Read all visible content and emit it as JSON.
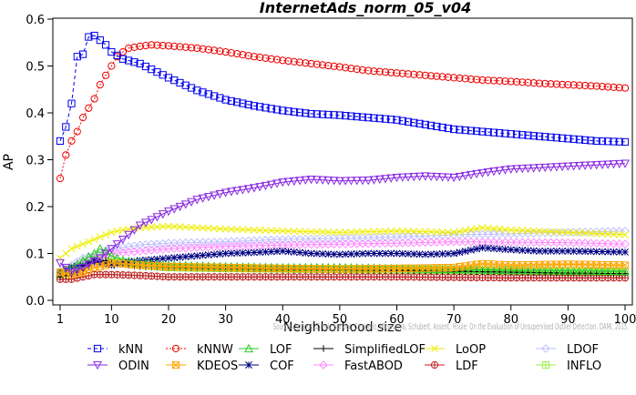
{
  "chart_data": {
    "type": "line",
    "title": "InternetAds_norm_05_v04",
    "xlabel": "Neighborhood size",
    "ylabel": "AP",
    "xlim": [
      1,
      100
    ],
    "ylim": [
      0,
      0.6
    ],
    "xticks": [
      1,
      10,
      20,
      30,
      40,
      50,
      60,
      70,
      80,
      90,
      100
    ],
    "yticks": [
      0.0,
      0.1,
      0.2,
      0.3,
      0.4,
      0.5,
      0.6
    ],
    "grid": false,
    "legend_position": "bottom",
    "watermark": "Source: Campos, Zimek, Sander, Campello, Micenkova, Schubert, Assent, Houle: On the Evaluation of Unsupervised Outlier Detection. DAMI, 2015.",
    "series": [
      {
        "name": "kNN",
        "color": "#0000ee",
        "marker": "square",
        "dash": "4,3",
        "points": [
          [
            1,
            0.34
          ],
          [
            2,
            0.37
          ],
          [
            3,
            0.42
          ],
          [
            4,
            0.52
          ],
          [
            5,
            0.525
          ],
          [
            6,
            0.562
          ],
          [
            7,
            0.565
          ],
          [
            8,
            0.555
          ],
          [
            9,
            0.545
          ],
          [
            10,
            0.53
          ],
          [
            12,
            0.515
          ],
          [
            15,
            0.505
          ],
          [
            20,
            0.475
          ],
          [
            25,
            0.448
          ],
          [
            30,
            0.428
          ],
          [
            35,
            0.415
          ],
          [
            40,
            0.405
          ],
          [
            45,
            0.398
          ],
          [
            50,
            0.395
          ],
          [
            55,
            0.39
          ],
          [
            60,
            0.385
          ],
          [
            65,
            0.375
          ],
          [
            70,
            0.365
          ],
          [
            75,
            0.36
          ],
          [
            80,
            0.355
          ],
          [
            85,
            0.35
          ],
          [
            90,
            0.345
          ],
          [
            95,
            0.34
          ],
          [
            100,
            0.338
          ]
        ]
      },
      {
        "name": "ODIN",
        "color": "#8a2be2",
        "marker": "triangle-down",
        "dash": "",
        "points": [
          [
            1,
            0.08
          ],
          [
            3,
            0.06
          ],
          [
            5,
            0.07
          ],
          [
            8,
            0.09
          ],
          [
            10,
            0.11
          ],
          [
            12,
            0.13
          ],
          [
            15,
            0.16
          ],
          [
            20,
            0.19
          ],
          [
            25,
            0.215
          ],
          [
            30,
            0.23
          ],
          [
            35,
            0.24
          ],
          [
            40,
            0.252
          ],
          [
            45,
            0.258
          ],
          [
            50,
            0.255
          ],
          [
            55,
            0.256
          ],
          [
            60,
            0.262
          ],
          [
            65,
            0.265
          ],
          [
            70,
            0.262
          ],
          [
            75,
            0.272
          ],
          [
            80,
            0.28
          ],
          [
            85,
            0.283
          ],
          [
            90,
            0.286
          ],
          [
            95,
            0.289
          ],
          [
            100,
            0.292
          ]
        ]
      },
      {
        "name": "kNNW",
        "color": "#ee0000",
        "marker": "circle",
        "dash": "2,2",
        "points": [
          [
            1,
            0.26
          ],
          [
            2,
            0.31
          ],
          [
            3,
            0.34
          ],
          [
            4,
            0.36
          ],
          [
            5,
            0.39
          ],
          [
            6,
            0.41
          ],
          [
            7,
            0.43
          ],
          [
            8,
            0.46
          ],
          [
            9,
            0.48
          ],
          [
            10,
            0.5
          ],
          [
            11,
            0.52
          ],
          [
            12,
            0.53
          ],
          [
            13,
            0.538
          ],
          [
            15,
            0.542
          ],
          [
            17,
            0.545
          ],
          [
            20,
            0.543
          ],
          [
            25,
            0.538
          ],
          [
            30,
            0.53
          ],
          [
            35,
            0.52
          ],
          [
            40,
            0.512
          ],
          [
            45,
            0.505
          ],
          [
            50,
            0.498
          ],
          [
            55,
            0.49
          ],
          [
            60,
            0.485
          ],
          [
            65,
            0.48
          ],
          [
            70,
            0.475
          ],
          [
            75,
            0.47
          ],
          [
            80,
            0.467
          ],
          [
            85,
            0.463
          ],
          [
            90,
            0.46
          ],
          [
            95,
            0.457
          ],
          [
            100,
            0.453
          ]
        ]
      },
      {
        "name": "KDEOS",
        "color": "#ffa500",
        "marker": "square-x",
        "dash": "",
        "points": [
          [
            1,
            0.06
          ],
          [
            3,
            0.055
          ],
          [
            5,
            0.06
          ],
          [
            7,
            0.07
          ],
          [
            9,
            0.075
          ],
          [
            10,
            0.08
          ],
          [
            15,
            0.075
          ],
          [
            20,
            0.072
          ],
          [
            30,
            0.07
          ],
          [
            40,
            0.068
          ],
          [
            50,
            0.067
          ],
          [
            60,
            0.068
          ],
          [
            70,
            0.07
          ],
          [
            75,
            0.078
          ],
          [
            80,
            0.075
          ],
          [
            90,
            0.077
          ],
          [
            100,
            0.075
          ]
        ]
      },
      {
        "name": "LOF",
        "color": "#22cc22",
        "marker": "triangle",
        "dash": "",
        "points": [
          [
            1,
            0.06
          ],
          [
            3,
            0.07
          ],
          [
            5,
            0.085
          ],
          [
            7,
            0.1
          ],
          [
            8,
            0.11
          ],
          [
            9,
            0.105
          ],
          [
            10,
            0.095
          ],
          [
            12,
            0.085
          ],
          [
            15,
            0.08
          ],
          [
            20,
            0.075
          ],
          [
            30,
            0.072
          ],
          [
            40,
            0.07
          ],
          [
            50,
            0.07
          ],
          [
            60,
            0.068
          ],
          [
            70,
            0.066
          ],
          [
            80,
            0.064
          ],
          [
            90,
            0.063
          ],
          [
            100,
            0.062
          ]
        ]
      },
      {
        "name": "COF",
        "color": "#000080",
        "marker": "asterisk",
        "dash": "",
        "points": [
          [
            1,
            0.06
          ],
          [
            3,
            0.07
          ],
          [
            5,
            0.075
          ],
          [
            7,
            0.085
          ],
          [
            8,
            0.08
          ],
          [
            10,
            0.075
          ],
          [
            12,
            0.08
          ],
          [
            15,
            0.085
          ],
          [
            20,
            0.09
          ],
          [
            25,
            0.095
          ],
          [
            30,
            0.1
          ],
          [
            35,
            0.102
          ],
          [
            40,
            0.105
          ],
          [
            45,
            0.1
          ],
          [
            50,
            0.098
          ],
          [
            55,
            0.1
          ],
          [
            60,
            0.1
          ],
          [
            65,
            0.098
          ],
          [
            70,
            0.1
          ],
          [
            75,
            0.112
          ],
          [
            80,
            0.108
          ],
          [
            85,
            0.105
          ],
          [
            90,
            0.105
          ],
          [
            95,
            0.104
          ],
          [
            100,
            0.103
          ]
        ]
      },
      {
        "name": "SimplifiedLOF",
        "color": "#000000",
        "marker": "plus",
        "dash": "",
        "points": [
          [
            1,
            0.05
          ],
          [
            3,
            0.055
          ],
          [
            5,
            0.065
          ],
          [
            7,
            0.08
          ],
          [
            9,
            0.085
          ],
          [
            10,
            0.08
          ],
          [
            15,
            0.072
          ],
          [
            20,
            0.07
          ],
          [
            30,
            0.068
          ],
          [
            40,
            0.066
          ],
          [
            50,
            0.065
          ],
          [
            60,
            0.064
          ],
          [
            70,
            0.062
          ],
          [
            80,
            0.06
          ],
          [
            90,
            0.058
          ],
          [
            100,
            0.057
          ]
        ]
      },
      {
        "name": "FastABOD",
        "color": "#ff88ff",
        "marker": "diamond",
        "dash": "",
        "points": [
          [
            1,
            0.06
          ],
          [
            5,
            0.08
          ],
          [
            10,
            0.1
          ],
          [
            15,
            0.105
          ],
          [
            20,
            0.11
          ],
          [
            30,
            0.115
          ],
          [
            40,
            0.118
          ],
          [
            50,
            0.12
          ],
          [
            60,
            0.122
          ],
          [
            70,
            0.125
          ],
          [
            80,
            0.124
          ],
          [
            90,
            0.123
          ],
          [
            100,
            0.12
          ]
        ]
      },
      {
        "name": "LoOP",
        "color": "#eeee00",
        "marker": "x",
        "dash": "",
        "points": [
          [
            1,
            0.09
          ],
          [
            3,
            0.11
          ],
          [
            5,
            0.12
          ],
          [
            7,
            0.13
          ],
          [
            10,
            0.145
          ],
          [
            12,
            0.15
          ],
          [
            15,
            0.155
          ],
          [
            20,
            0.158
          ],
          [
            25,
            0.155
          ],
          [
            30,
            0.152
          ],
          [
            35,
            0.15
          ],
          [
            40,
            0.148
          ],
          [
            50,
            0.145
          ],
          [
            60,
            0.148
          ],
          [
            70,
            0.145
          ],
          [
            75,
            0.155
          ],
          [
            80,
            0.15
          ],
          [
            90,
            0.145
          ],
          [
            100,
            0.14
          ]
        ]
      },
      {
        "name": "LDF",
        "color": "#bb2222",
        "marker": "circle-plus",
        "dash": "",
        "points": [
          [
            1,
            0.045
          ],
          [
            3,
            0.045
          ],
          [
            5,
            0.05
          ],
          [
            7,
            0.055
          ],
          [
            10,
            0.055
          ],
          [
            15,
            0.053
          ],
          [
            20,
            0.05
          ],
          [
            30,
            0.05
          ],
          [
            40,
            0.05
          ],
          [
            50,
            0.05
          ],
          [
            60,
            0.05
          ],
          [
            70,
            0.049
          ],
          [
            80,
            0.048
          ],
          [
            90,
            0.048
          ],
          [
            100,
            0.048
          ]
        ]
      },
      {
        "name": "LDOF",
        "color": "#c0c0ff",
        "marker": "diamond-open",
        "dash": "",
        "points": [
          [
            1,
            0.06
          ],
          [
            5,
            0.09
          ],
          [
            10,
            0.11
          ],
          [
            15,
            0.118
          ],
          [
            20,
            0.122
          ],
          [
            30,
            0.125
          ],
          [
            40,
            0.13
          ],
          [
            50,
            0.132
          ],
          [
            60,
            0.135
          ],
          [
            70,
            0.14
          ],
          [
            80,
            0.142
          ],
          [
            90,
            0.145
          ],
          [
            100,
            0.148
          ]
        ]
      },
      {
        "name": "INFLO",
        "color": "#99ee44",
        "marker": "square-cross",
        "dash": "",
        "points": [
          [
            1,
            0.055
          ],
          [
            3,
            0.06
          ],
          [
            5,
            0.07
          ],
          [
            7,
            0.09
          ],
          [
            8,
            0.095
          ],
          [
            10,
            0.085
          ],
          [
            15,
            0.075
          ],
          [
            20,
            0.07
          ],
          [
            30,
            0.068
          ],
          [
            40,
            0.067
          ],
          [
            50,
            0.066
          ],
          [
            60,
            0.065
          ],
          [
            70,
            0.064
          ],
          [
            80,
            0.062
          ],
          [
            90,
            0.06
          ],
          [
            100,
            0.06
          ]
        ]
      }
    ]
  }
}
